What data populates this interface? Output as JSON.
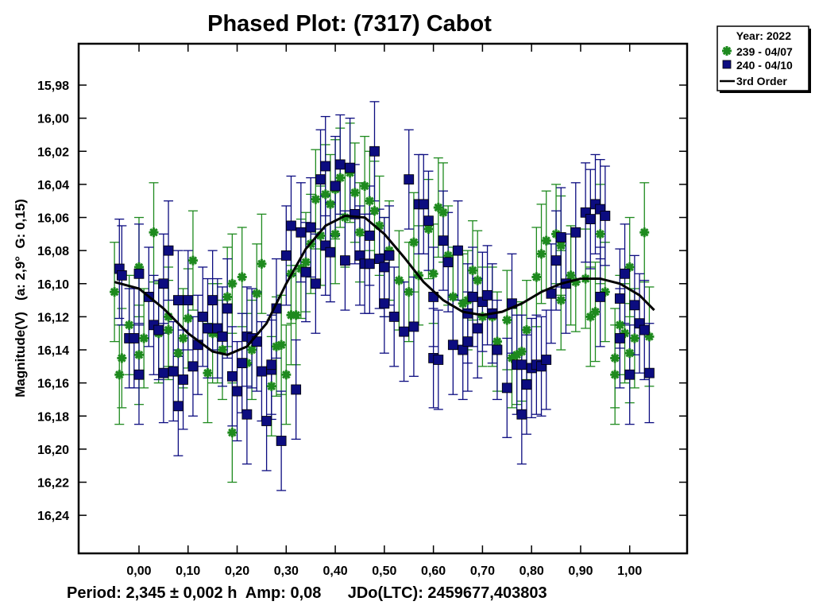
{
  "chart_data": {
    "type": "scatter",
    "title": "Phased Plot: (7317) Cabot",
    "xlabel": "",
    "ylabel": "Magnitude(V)   (a: 2,9°  G: 0,15)",
    "footer": "Period: 2,345 ± 0,002 h  Amp: 0,08      JDo(LTC): 2459677,403803",
    "xlim": [
      -0.123,
      1.117
    ],
    "ylim": [
      16.263,
      15.955
    ],
    "y_inverted": true,
    "x_ticks": [
      "0,00",
      "0,10",
      "0,20",
      "0,30",
      "0,40",
      "0,50",
      "0,60",
      "0,70",
      "0,80",
      "0,90",
      "1,00"
    ],
    "x_tick_values": [
      0,
      0.1,
      0.2,
      0.3,
      0.4,
      0.5,
      0.6,
      0.7,
      0.8,
      0.9,
      1.0
    ],
    "y_ticks": [
      "15,98",
      "16,00",
      "16,02",
      "16,04",
      "16,06",
      "16,08",
      "16,10",
      "16,12",
      "16,14",
      "16,16",
      "16,18",
      "16,20",
      "16,22",
      "16,24"
    ],
    "y_tick_values": [
      15.98,
      16.0,
      16.02,
      16.04,
      16.06,
      16.08,
      16.1,
      16.12,
      16.14,
      16.16,
      16.18,
      16.2,
      16.22,
      16.24
    ],
    "grid": false,
    "legend": {
      "placement": "outside-top-right",
      "title": "Year: 2022",
      "entries": [
        "239 - 04/07",
        "240 - 04/10",
        "3rd Order"
      ]
    },
    "error_bar": 0.03,
    "colors": {
      "s239": "#1e8a1e",
      "s240": "#0c0c80",
      "fit": "#000000"
    },
    "series": [
      {
        "name": "239 - 04/07",
        "marker": "asterisk",
        "points": [
          [
            -0.05,
            16.105
          ],
          [
            -0.04,
            16.155
          ],
          [
            -0.035,
            16.145
          ],
          [
            -0.02,
            16.125
          ],
          [
            0.0,
            16.09
          ],
          [
            0.0,
            16.143
          ],
          [
            0.01,
            16.133
          ],
          [
            0.03,
            16.069
          ],
          [
            0.04,
            16.13
          ],
          [
            0.06,
            16.12
          ],
          [
            0.06,
            16.128
          ],
          [
            0.08,
            16.142
          ],
          [
            0.09,
            16.133
          ],
          [
            0.1,
            16.121
          ],
          [
            0.11,
            16.086
          ],
          [
            0.14,
            16.154
          ],
          [
            0.15,
            16.13
          ],
          [
            0.16,
            16.13
          ],
          [
            0.17,
            16.14
          ],
          [
            0.18,
            16.108
          ],
          [
            0.19,
            16.19
          ],
          [
            0.19,
            16.1
          ],
          [
            0.21,
            16.096
          ],
          [
            0.22,
            16.148
          ],
          [
            0.23,
            16.14
          ],
          [
            0.24,
            16.106
          ],
          [
            0.25,
            16.088
          ],
          [
            0.27,
            16.162
          ],
          [
            0.28,
            16.138
          ],
          [
            0.29,
            16.137
          ],
          [
            0.3,
            16.155
          ],
          [
            0.31,
            16.094
          ],
          [
            0.31,
            16.119
          ],
          [
            0.32,
            16.119
          ],
          [
            0.33,
            16.091
          ],
          [
            0.34,
            16.087
          ],
          [
            0.35,
            16.076
          ],
          [
            0.36,
            16.049
          ],
          [
            0.37,
            16.071
          ],
          [
            0.38,
            16.046
          ],
          [
            0.39,
            16.052
          ],
          [
            0.4,
            16.07
          ],
          [
            0.4,
            16.043
          ],
          [
            0.41,
            16.036
          ],
          [
            0.42,
            16.06
          ],
          [
            0.43,
            16.033
          ],
          [
            0.44,
            16.045
          ],
          [
            0.45,
            16.069
          ],
          [
            0.46,
            16.041
          ],
          [
            0.47,
            16.05
          ],
          [
            0.48,
            16.056
          ],
          [
            0.49,
            16.065
          ],
          [
            0.5,
            16.09
          ],
          [
            0.51,
            16.08
          ],
          [
            0.53,
            16.098
          ],
          [
            0.55,
            16.105
          ],
          [
            0.56,
            16.075
          ],
          [
            0.57,
            16.095
          ],
          [
            0.59,
            16.067
          ],
          [
            0.6,
            16.094
          ],
          [
            0.61,
            16.054
          ],
          [
            0.62,
            16.057
          ],
          [
            0.63,
            16.083
          ],
          [
            0.64,
            16.108
          ],
          [
            0.66,
            16.112
          ],
          [
            0.67,
            16.11
          ],
          [
            0.68,
            16.092
          ],
          [
            0.69,
            16.098
          ],
          [
            0.7,
            16.12
          ],
          [
            0.72,
            16.12
          ],
          [
            0.73,
            16.135
          ],
          [
            0.75,
            16.122
          ],
          [
            0.76,
            16.145
          ],
          [
            0.77,
            16.143
          ],
          [
            0.78,
            16.141
          ],
          [
            0.79,
            16.128
          ],
          [
            0.81,
            16.096
          ],
          [
            0.82,
            16.082
          ],
          [
            0.83,
            16.074
          ],
          [
            0.85,
            16.07
          ],
          [
            0.86,
            16.077
          ],
          [
            0.86,
            16.11
          ],
          [
            0.88,
            16.095
          ],
          [
            0.89,
            16.099
          ],
          [
            0.91,
            16.097
          ],
          [
            0.92,
            16.12
          ],
          [
            0.93,
            16.117
          ],
          [
            0.94,
            16.07
          ],
          [
            0.95,
            16.105
          ],
          [
            0.97,
            16.145
          ],
          [
            0.97,
            16.155
          ],
          [
            0.98,
            16.125
          ],
          [
            0.99,
            16.13
          ],
          [
            1.0,
            16.142
          ],
          [
            1.0,
            16.09
          ],
          [
            1.01,
            16.133
          ],
          [
            1.03,
            16.069
          ],
          [
            1.04,
            16.132
          ]
        ]
      },
      {
        "name": "240 - 04/10",
        "marker": "square",
        "points": [
          [
            -0.04,
            16.091
          ],
          [
            -0.035,
            16.095
          ],
          [
            -0.02,
            16.133
          ],
          [
            -0.01,
            16.133
          ],
          [
            0.0,
            16.094
          ],
          [
            0.0,
            16.155
          ],
          [
            0.02,
            16.108
          ],
          [
            0.03,
            16.125
          ],
          [
            0.04,
            16.128
          ],
          [
            0.05,
            16.154
          ],
          [
            0.05,
            16.1
          ],
          [
            0.06,
            16.08
          ],
          [
            0.07,
            16.153
          ],
          [
            0.08,
            16.174
          ],
          [
            0.08,
            16.11
          ],
          [
            0.09,
            16.158
          ],
          [
            0.1,
            16.11
          ],
          [
            0.11,
            16.15
          ],
          [
            0.12,
            16.137
          ],
          [
            0.13,
            16.12
          ],
          [
            0.14,
            16.127
          ],
          [
            0.15,
            16.11
          ],
          [
            0.16,
            16.127
          ],
          [
            0.17,
            16.132
          ],
          [
            0.18,
            16.115
          ],
          [
            0.19,
            16.156
          ],
          [
            0.2,
            16.165
          ],
          [
            0.21,
            16.148
          ],
          [
            0.22,
            16.132
          ],
          [
            0.22,
            16.179
          ],
          [
            0.23,
            16.133
          ],
          [
            0.24,
            16.135
          ],
          [
            0.25,
            16.153
          ],
          [
            0.26,
            16.183
          ],
          [
            0.27,
            16.152
          ],
          [
            0.27,
            16.149
          ],
          [
            0.28,
            16.115
          ],
          [
            0.29,
            16.195
          ],
          [
            0.3,
            16.083
          ],
          [
            0.31,
            16.065
          ],
          [
            0.32,
            16.164
          ],
          [
            0.33,
            16.069
          ],
          [
            0.34,
            16.093
          ],
          [
            0.35,
            16.066
          ],
          [
            0.36,
            16.1
          ],
          [
            0.37,
            16.037
          ],
          [
            0.38,
            16.029
          ],
          [
            0.38,
            16.077
          ],
          [
            0.39,
            16.081
          ],
          [
            0.4,
            16.041
          ],
          [
            0.41,
            16.028
          ],
          [
            0.42,
            16.086
          ],
          [
            0.43,
            16.03
          ],
          [
            0.44,
            16.058
          ],
          [
            0.45,
            16.083
          ],
          [
            0.46,
            16.088
          ],
          [
            0.47,
            16.088
          ],
          [
            0.47,
            16.071
          ],
          [
            0.48,
            16.02
          ],
          [
            0.49,
            16.085
          ],
          [
            0.5,
            16.112
          ],
          [
            0.5,
            16.09
          ],
          [
            0.51,
            16.083
          ],
          [
            0.52,
            16.12
          ],
          [
            0.54,
            16.129
          ],
          [
            0.55,
            16.037
          ],
          [
            0.56,
            16.126
          ],
          [
            0.57,
            16.052
          ],
          [
            0.58,
            16.052
          ],
          [
            0.59,
            16.062
          ],
          [
            0.6,
            16.108
          ],
          [
            0.6,
            16.145
          ],
          [
            0.61,
            16.146
          ],
          [
            0.62,
            16.074
          ],
          [
            0.63,
            16.087
          ],
          [
            0.64,
            16.137
          ],
          [
            0.65,
            16.08
          ],
          [
            0.66,
            16.14
          ],
          [
            0.67,
            16.135
          ],
          [
            0.67,
            16.118
          ],
          [
            0.68,
            16.108
          ],
          [
            0.69,
            16.127
          ],
          [
            0.7,
            16.111
          ],
          [
            0.71,
            16.107
          ],
          [
            0.72,
            16.118
          ],
          [
            0.73,
            16.14
          ],
          [
            0.75,
            16.163
          ],
          [
            0.76,
            16.112
          ],
          [
            0.77,
            16.149
          ],
          [
            0.78,
            16.149
          ],
          [
            0.78,
            16.179
          ],
          [
            0.79,
            16.161
          ],
          [
            0.8,
            16.151
          ],
          [
            0.81,
            16.149
          ],
          [
            0.82,
            16.15
          ],
          [
            0.83,
            16.146
          ],
          [
            0.84,
            16.106
          ],
          [
            0.85,
            16.086
          ],
          [
            0.86,
            16.072
          ],
          [
            0.87,
            16.1
          ],
          [
            0.89,
            16.069
          ],
          [
            0.91,
            16.057
          ],
          [
            0.92,
            16.061
          ],
          [
            0.93,
            16.052
          ],
          [
            0.94,
            16.055
          ],
          [
            0.94,
            16.108
          ],
          [
            0.95,
            16.059
          ],
          [
            0.98,
            16.109
          ],
          [
            0.98,
            16.133
          ],
          [
            0.99,
            16.094
          ],
          [
            1.0,
            16.155
          ],
          [
            1.01,
            16.113
          ],
          [
            1.02,
            16.124
          ],
          [
            1.03,
            16.128
          ],
          [
            1.04,
            16.154
          ]
        ]
      },
      {
        "name": "3rd Order",
        "marker": "line",
        "points": [
          [
            -0.05,
            16.099
          ],
          [
            0.0,
            16.103
          ],
          [
            0.05,
            16.115
          ],
          [
            0.1,
            16.13
          ],
          [
            0.15,
            16.141
          ],
          [
            0.18,
            16.143
          ],
          [
            0.22,
            16.138
          ],
          [
            0.26,
            16.124
          ],
          [
            0.3,
            16.1
          ],
          [
            0.34,
            16.079
          ],
          [
            0.38,
            16.065
          ],
          [
            0.42,
            16.059
          ],
          [
            0.46,
            16.06
          ],
          [
            0.5,
            16.07
          ],
          [
            0.54,
            16.084
          ],
          [
            0.58,
            16.099
          ],
          [
            0.62,
            16.11
          ],
          [
            0.66,
            16.117
          ],
          [
            0.7,
            16.119
          ],
          [
            0.74,
            16.117
          ],
          [
            0.78,
            16.112
          ],
          [
            0.82,
            16.105
          ],
          [
            0.86,
            16.1
          ],
          [
            0.9,
            16.097
          ],
          [
            0.94,
            16.097
          ],
          [
            0.98,
            16.1
          ],
          [
            1.02,
            16.107
          ],
          [
            1.05,
            16.116
          ]
        ]
      }
    ]
  }
}
